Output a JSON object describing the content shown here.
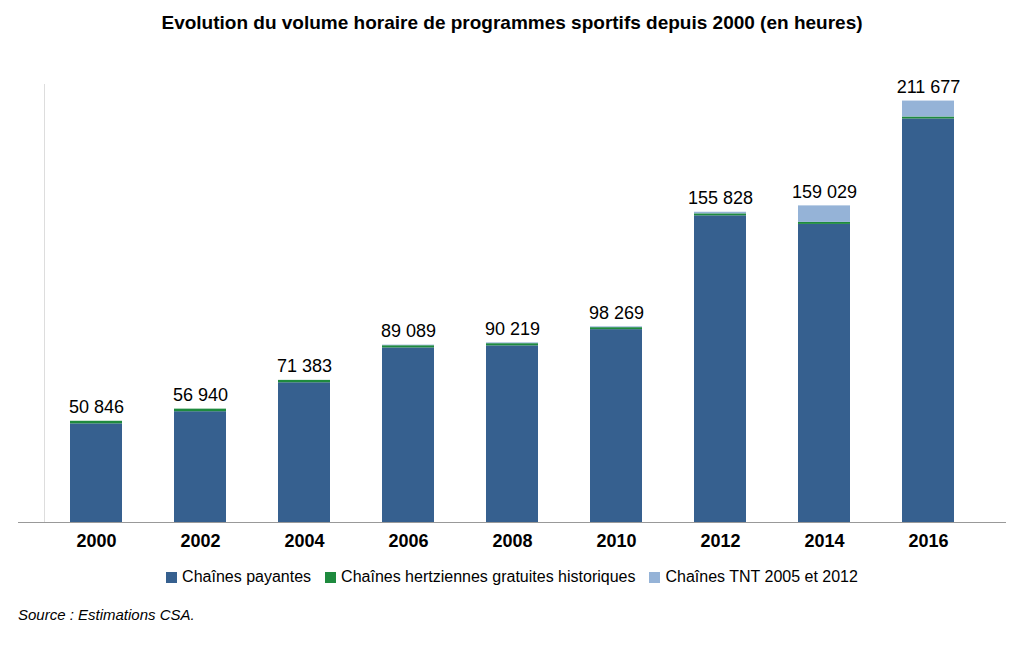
{
  "chart_data": {
    "type": "bar",
    "title": "Evolution du volume horaire de programmes sportifs depuis 2000 (en heures)",
    "source": "Source : Estimations CSA.",
    "stacked": true,
    "categories": [
      "2000",
      "2002",
      "2004",
      "2006",
      "2008",
      "2010",
      "2012",
      "2014",
      "2016"
    ],
    "series": [
      {
        "name": "Chaînes payantes",
        "color": "#36608f",
        "values": [
          49546,
          55640,
          70183,
          87689,
          88719,
          96869,
          154028,
          149729,
          202677
        ]
      },
      {
        "name": "Chaînes hertziennes gratuites historiques",
        "color": "#1e8a3e",
        "values": [
          1300,
          1300,
          1200,
          1100,
          1100,
          1000,
          1000,
          1000,
          1000
        ]
      },
      {
        "name": "Chaînes TNT 2005 et 2012",
        "color": "#95b3d7",
        "values": [
          0,
          0,
          0,
          300,
          400,
          400,
          800,
          8300,
          8000
        ]
      }
    ],
    "totals": [
      50846,
      56940,
      71383,
      89089,
      90219,
      98269,
      155828,
      159029,
      211677
    ],
    "total_labels": [
      "50 846",
      "56 940",
      "71 383",
      "89 089",
      "90 219",
      "98 269",
      "155 828",
      "159 029",
      "211 677"
    ],
    "data_labels": true,
    "ylim": [
      0,
      220000
    ],
    "yticks": [],
    "tick_labels": "x",
    "grid": false,
    "legend": "bottom"
  }
}
